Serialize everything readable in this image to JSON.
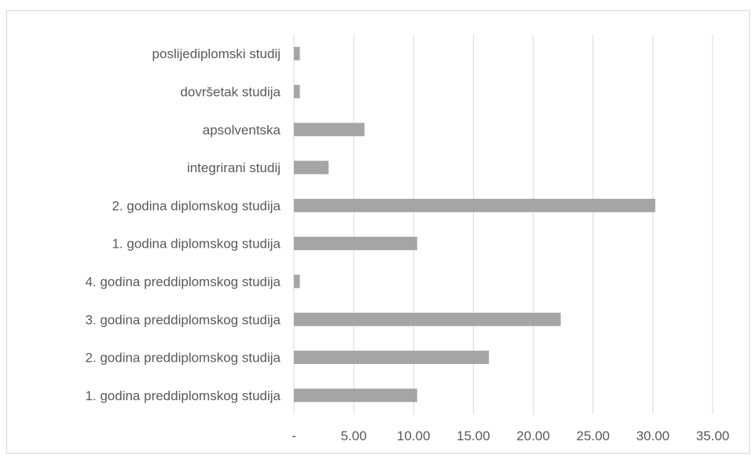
{
  "chart_data": {
    "type": "bar",
    "orientation": "horizontal",
    "categories": [
      "poslijediplomski studij",
      "dovršetak studija",
      "apsolventska",
      "integrirani studij",
      "2. godina diplomskog studija",
      "1. godina diplomskog studija",
      "4. godina preddiplomskog studija",
      "3. godina preddiplomskog studija",
      "2. godina preddiplomskog studija",
      "1. godina preddiplomskog studija"
    ],
    "values": [
      0.5,
      0.5,
      5.9,
      2.9,
      30.2,
      10.3,
      0.5,
      22.3,
      16.3,
      10.3
    ],
    "xlim": [
      0,
      35
    ],
    "xticks": [
      0,
      5,
      10,
      15,
      20,
      25,
      30,
      35
    ],
    "xtick_labels": [
      "-",
      "5.00",
      "10.00",
      "15.00",
      "20.00",
      "25.00",
      "30.00",
      "35.00"
    ],
    "grid": "vertical",
    "bar_color": "#a5a5a5",
    "grid_color": "#d9d9d9",
    "label_color": "#595959",
    "title": "",
    "xlabel": "",
    "ylabel": ""
  }
}
